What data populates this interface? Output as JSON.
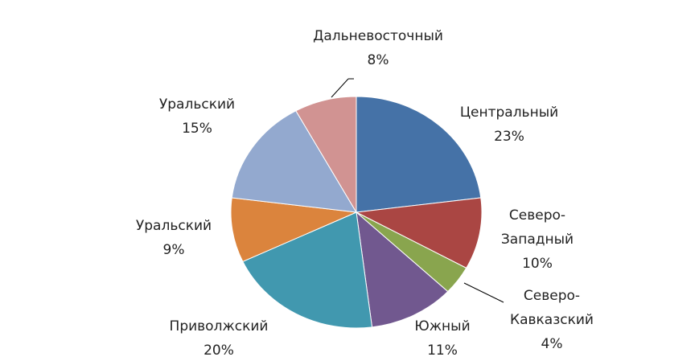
{
  "chart_data": {
    "type": "pie",
    "categories": [
      "Центральный",
      "Северо-Западный",
      "Северо-Кавказский",
      "Южный",
      "Приволжский",
      "Уральский",
      "Уральский",
      "Дальневосточный"
    ],
    "values": [
      23,
      10,
      4,
      11,
      20,
      9,
      15,
      8
    ],
    "value_labels": [
      "23%",
      "10%",
      "4%",
      "11%",
      "20%",
      "9%",
      "15%",
      "8%"
    ],
    "colors": [
      "#4572A7",
      "#AA4643",
      "#89A54E",
      "#71588F",
      "#4198AF",
      "#DB843D",
      "#93A9CF",
      "#D19392"
    ]
  }
}
